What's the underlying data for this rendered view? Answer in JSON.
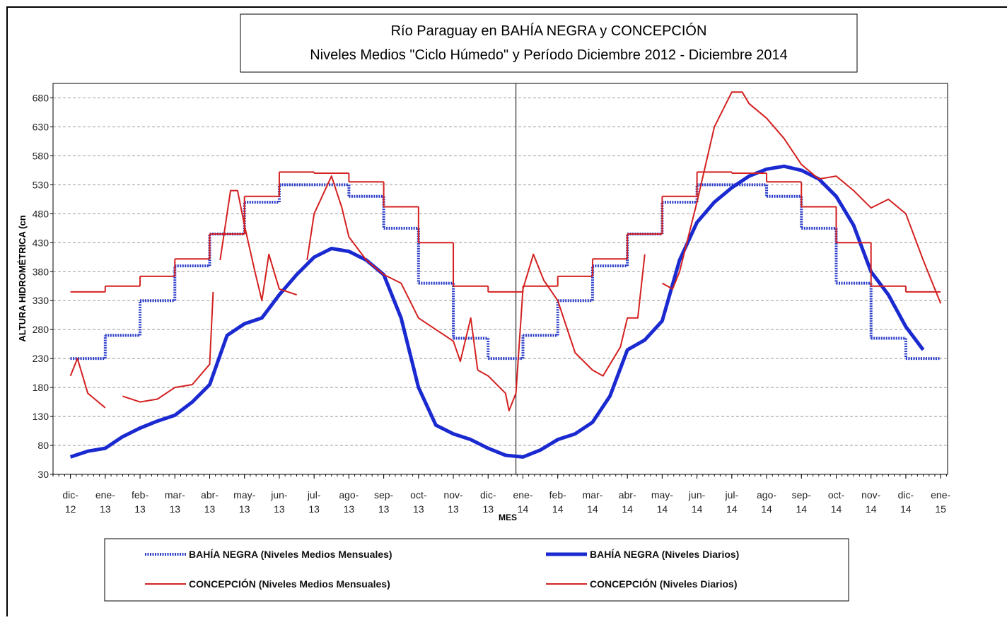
{
  "chart_data": {
    "type": "line",
    "title": "Río Paraguay en BAHÍA NEGRA y CONCEPCIÓN",
    "subtitle": "Niveles Medios \"Ciclo Húmedo\" y Período Diciembre 2012 - Diciembre 2014",
    "ylabel": "ALTURA HIDROMÉTRICA (cn",
    "xlabel": "MES",
    "ylim": [
      30,
      705
    ],
    "yticks": [
      30,
      80,
      130,
      180,
      230,
      280,
      330,
      380,
      430,
      480,
      530,
      580,
      630,
      680
    ],
    "xlim": [
      -0.5,
      25.2
    ],
    "xticks": [
      {
        "value": 0,
        "label": "dic-12"
      },
      {
        "value": 1,
        "label": "ene-13"
      },
      {
        "value": 2,
        "label": "feb-13"
      },
      {
        "value": 3,
        "label": "mar-13"
      },
      {
        "value": 4,
        "label": "abr-13"
      },
      {
        "value": 5,
        "label": "may-13"
      },
      {
        "value": 6,
        "label": "jun-13"
      },
      {
        "value": 7,
        "label": "jul-13"
      },
      {
        "value": 8,
        "label": "ago-13"
      },
      {
        "value": 9,
        "label": "sep-13"
      },
      {
        "value": 10,
        "label": "oct-13"
      },
      {
        "value": 11,
        "label": "nov-13"
      },
      {
        "value": 12,
        "label": "dic-13"
      },
      {
        "value": 13,
        "label": "ene-14"
      },
      {
        "value": 14,
        "label": "feb-14"
      },
      {
        "value": 15,
        "label": "mar-14"
      },
      {
        "value": 16,
        "label": "abr-14"
      },
      {
        "value": 17,
        "label": "may-14"
      },
      {
        "value": 18,
        "label": "jun-14"
      },
      {
        "value": 19,
        "label": "jul-14"
      },
      {
        "value": 20,
        "label": "ago-14"
      },
      {
        "value": 21,
        "label": "sep-14"
      },
      {
        "value": 22,
        "label": "oct-14"
      },
      {
        "value": 23,
        "label": "nov-14"
      },
      {
        "value": 24,
        "label": "dic-14"
      },
      {
        "value": 25,
        "label": "ene-15"
      }
    ],
    "grid": true,
    "vline": 12.8,
    "series": [
      {
        "name": "BAHÍA NEGRA (Niveles Medios Mensuales)",
        "color": "#2a3cc8",
        "style": "step",
        "x": [
          0,
          1,
          2,
          3,
          4,
          5,
          6,
          7,
          8,
          9,
          10,
          11,
          12,
          13,
          14,
          15,
          16,
          17,
          18,
          19,
          20,
          21,
          22,
          23,
          24
        ],
        "values": [
          230,
          270,
          330,
          390,
          445,
          500,
          530,
          530,
          510,
          455,
          360,
          265,
          230,
          270,
          330,
          390,
          445,
          500,
          530,
          530,
          510,
          455,
          360,
          265,
          230
        ]
      },
      {
        "name": "BAHÍA NEGRA (Niveles Diarios)",
        "color": "#1a2ad0",
        "style": "thick",
        "x": [
          0,
          0.5,
          1,
          1.5,
          2,
          2.5,
          3,
          3.5,
          4,
          4.5,
          5,
          5.5,
          6,
          6.5,
          7,
          7.5,
          8,
          8.5,
          9,
          9.5,
          10,
          10.5,
          11,
          11.5,
          12,
          12.5,
          13,
          13.5,
          14,
          14.5,
          15,
          15.5,
          16,
          16.5,
          17,
          17.5,
          18,
          18.5,
          19,
          19.5,
          20,
          20.5,
          21,
          21.5,
          22,
          22.5,
          23,
          23.5,
          24,
          24.5
        ],
        "values": [
          60,
          70,
          75,
          95,
          110,
          122,
          132,
          155,
          185,
          270,
          290,
          300,
          340,
          375,
          405,
          420,
          415,
          400,
          375,
          300,
          180,
          115,
          100,
          90,
          75,
          63,
          60,
          72,
          90,
          100,
          120,
          165,
          245,
          262,
          295,
          400,
          465,
          500,
          525,
          545,
          557,
          562,
          555,
          540,
          510,
          460,
          380,
          340,
          285,
          245
        ]
      },
      {
        "name": "CONCEPCIÓN (Niveles Medios Mensuales)",
        "color": "#d42020",
        "style": "step",
        "x": [
          0,
          1,
          2,
          3,
          4,
          5,
          6,
          7,
          8,
          9,
          10,
          11,
          12,
          13,
          14,
          15,
          16,
          17,
          18,
          19,
          20,
          21,
          22,
          23,
          24
        ],
        "values": [
          345,
          355,
          372,
          402,
          445,
          510,
          552,
          550,
          535,
          492,
          430,
          355,
          345,
          355,
          372,
          402,
          445,
          510,
          552,
          550,
          535,
          492,
          430,
          355,
          345
        ]
      },
      {
        "name": "CONCEPCIÓN (Niveles Diarios)",
        "color": "#d42020",
        "style": "line",
        "x": [
          0,
          0.2,
          0.5,
          1,
          1.2,
          1.5,
          2,
          2.5,
          3,
          3.5,
          4,
          4.1,
          4.2,
          4.3,
          4.6,
          4.8,
          5,
          5.3,
          5.5,
          5.7,
          6,
          6.5,
          6.6,
          6.8,
          7,
          7.5,
          7.8,
          8,
          8.5,
          9,
          9.5,
          10,
          10.5,
          11,
          11.2,
          11.5,
          11.7,
          12,
          12.5,
          12.6,
          12.8,
          13,
          13.3,
          13.6,
          14,
          14.5,
          15,
          15.3,
          15.8,
          16,
          16.3,
          16.5,
          16.7,
          17,
          17.3,
          17.5,
          18,
          18.5,
          19,
          19.3,
          19.5,
          20,
          20.5,
          21,
          21.5,
          22,
          22.5,
          23,
          23.5,
          24,
          24.5,
          25
        ],
        "values": [
          200,
          230,
          170,
          145,
          null,
          165,
          155,
          160,
          180,
          185,
          220,
          345,
          null,
          400,
          520,
          520,
          460,
          380,
          330,
          410,
          350,
          340,
          null,
          400,
          480,
          545,
          490,
          440,
          400,
          375,
          360,
          300,
          280,
          260,
          225,
          300,
          210,
          200,
          170,
          140,
          170,
          350,
          410,
          365,
          330,
          240,
          210,
          200,
          250,
          300,
          300,
          410,
          null,
          360,
          350,
          380,
          500,
          630,
          690,
          690,
          670,
          645,
          610,
          565,
          540,
          545,
          520,
          490,
          505,
          480,
          400,
          325
        ]
      }
    ]
  }
}
